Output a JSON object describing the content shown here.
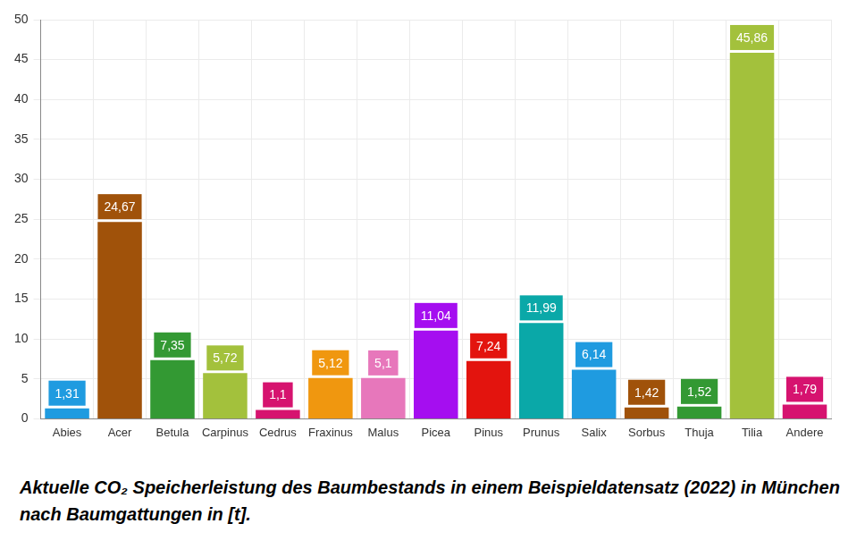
{
  "chart_data": {
    "type": "bar",
    "title": "Aktuelle CO₂ Speicherleistung des Baumbestands in einem Beispieldatensatz (2022) in München nach Baumgattungen in [t].",
    "categories": [
      "Abies",
      "Acer",
      "Betula",
      "Carpinus",
      "Cedrus",
      "Fraxinus",
      "Malus",
      "Picea",
      "Pinus",
      "Prunus",
      "Salix",
      "Sorbus",
      "Thuja",
      "Tilia",
      "Andere"
    ],
    "values": [
      1.31,
      24.67,
      7.35,
      5.72,
      1.1,
      5.12,
      5.1,
      11.04,
      7.24,
      11.99,
      6.14,
      1.42,
      1.52,
      45.86,
      1.79
    ],
    "value_labels": [
      "1,31",
      "24,67",
      "7,35",
      "5,72",
      "1,1",
      "5,12",
      "5,1",
      "11,04",
      "7,24",
      "11,99",
      "6,14",
      "1,42",
      "1,52",
      "45,86",
      "1,79"
    ],
    "colors": [
      "#1f9be0",
      "#a0520a",
      "#339933",
      "#a3c13c",
      "#d6136f",
      "#f0970f",
      "#e777bb",
      "#a50ef0",
      "#e3140e",
      "#0aa8a8",
      "#1f9be0",
      "#a0520a",
      "#339933",
      "#a3c13c",
      "#d6136f"
    ],
    "ylim": [
      0,
      50
    ],
    "yticks": [
      0,
      5,
      10,
      15,
      20,
      25,
      30,
      35,
      40,
      45,
      50
    ],
    "grid": true,
    "data_labels": true
  }
}
